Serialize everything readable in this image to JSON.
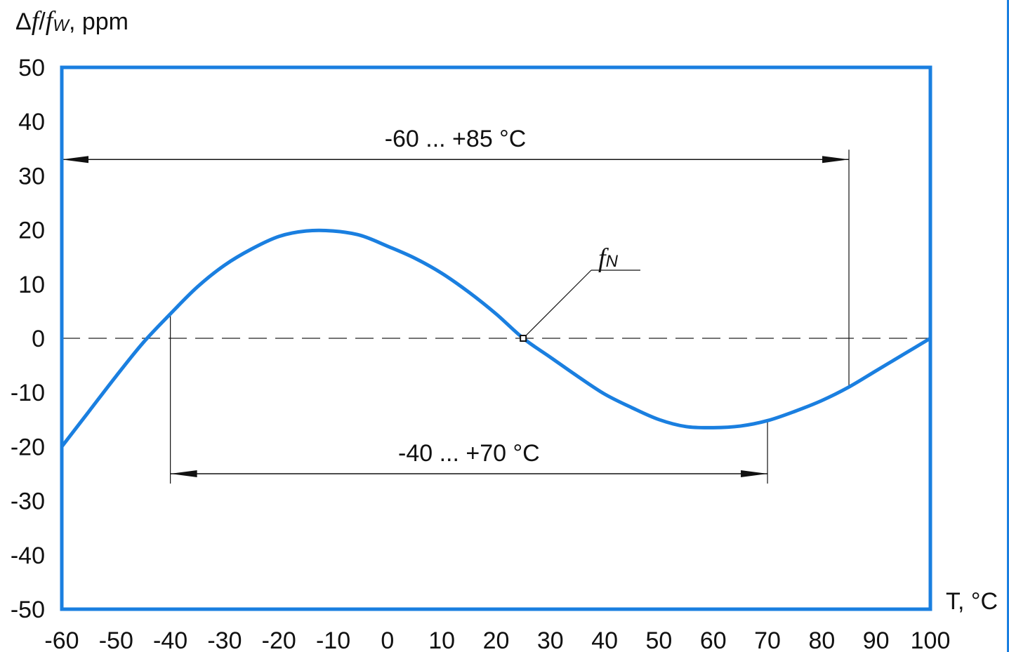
{
  "chart_data": {
    "type": "line",
    "ylabel": {
      "delta": "Δ",
      "f": "f",
      "sub": "W",
      "sep": "/",
      "unit": ", ppm"
    },
    "xlabel": "T, °C",
    "xlim": [
      -60,
      100
    ],
    "ylim": [
      -50,
      50
    ],
    "x_ticks": [
      "-60",
      "-50",
      "-40",
      "-30",
      "-20",
      "-10",
      "0",
      "10",
      "20",
      "30",
      "40",
      "50",
      "60",
      "70",
      "80",
      "90",
      "100"
    ],
    "y_ticks": [
      "50",
      "40",
      "30",
      "20",
      "10",
      "0",
      "-10",
      "-20",
      "-30",
      "-40",
      "-50"
    ],
    "series": [
      {
        "color": "#1a7fe0",
        "x": [
          -60,
          -55,
          -50,
          -45,
          -40,
          -35,
          -30,
          -25,
          -20,
          -15,
          -10,
          -5,
          0,
          5,
          10,
          15,
          20,
          25,
          30,
          35,
          40,
          45,
          50,
          55,
          60,
          65,
          70,
          75,
          80,
          85,
          90,
          95,
          100
        ],
        "y": [
          -20,
          -13.5,
          -7,
          -0.8,
          4.5,
          9.5,
          13.5,
          16.5,
          18.8,
          19.8,
          19.8,
          19,
          17,
          14.8,
          12,
          8.5,
          4.5,
          0,
          -3.5,
          -7,
          -10.3,
          -12.8,
          -15,
          -16.3,
          -16.5,
          -16.2,
          -15.2,
          -13.5,
          -11.5,
          -9,
          -6,
          -3,
          0
        ]
      }
    ],
    "reference_line": {
      "y": 0,
      "style": "dashed"
    },
    "marker": {
      "x": 25,
      "y": 0,
      "label": "f",
      "label_sub": "N"
    },
    "ranges": [
      {
        "label": "-60 ... +85 °C",
        "from": -60,
        "to": 85,
        "y": 33
      },
      {
        "label": "-40 ... +70 °C",
        "from": -40,
        "to": 70,
        "y": -25
      }
    ]
  }
}
